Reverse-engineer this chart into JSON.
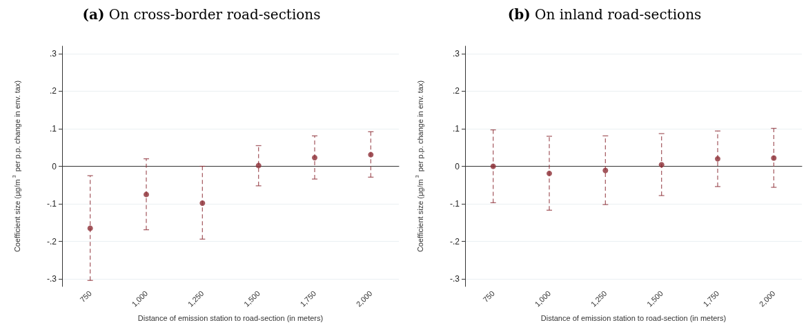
{
  "chart_data": [
    {
      "type": "scatter",
      "title": "(a) On cross-border road-sections",
      "xlabel": "Distance of emission station to road-section (in meters)",
      "ylabel": "Coefficient size (μg/m$^{3}$ per p.p. change in env. tax)",
      "categories": [
        "750",
        "1,000",
        "1,250",
        "1,500",
        "1,750",
        "2,000"
      ],
      "series": [
        {
          "color": "#8c2d35",
          "values": [
            -0.165,
            -0.075,
            -0.098,
            0.002,
            0.023,
            0.031
          ],
          "errors": [
            [
              -0.304,
              -0.025
            ],
            [
              -0.169,
              0.02
            ],
            [
              -0.194,
              0.0
            ],
            [
              -0.052,
              0.055
            ],
            [
              -0.034,
              0.081
            ],
            [
              -0.029,
              0.092
            ]
          ]
        }
      ],
      "ylim": [
        -0.32,
        0.32
      ],
      "yticks": [
        {
          "value": -0.3,
          "label": "-.3"
        },
        {
          "value": -0.2,
          "label": "-.2"
        },
        {
          "value": -0.1,
          "label": "-.1"
        },
        0,
        {
          "value": 0.1,
          "label": ".1"
        },
        {
          "value": 0.2,
          "label": ".2"
        },
        {
          "value": 0.3,
          "label": ".3"
        }
      ],
      "ref_lines": [
        {
          "axis": "y",
          "value": 0,
          "color": "#333333"
        }
      ],
      "grid": "y",
      "marker": "circle"
    },
    {
      "type": "scatter",
      "title": "(b) On inland road-sections",
      "xlabel": "Distance of emission station to road-section (in meters)",
      "ylabel": "Coefficient size (μg/m$^{3}$ per p.p. change in env. tax)",
      "categories": [
        "750",
        "1,000",
        "1,250",
        "1,500",
        "1,750",
        "2,000"
      ],
      "series": [
        {
          "color": "#8c2d35",
          "values": [
            0.0,
            -0.019,
            -0.011,
            0.004,
            0.02,
            0.022
          ],
          "errors": [
            [
              -0.097,
              0.097
            ],
            [
              -0.117,
              0.08
            ],
            [
              -0.102,
              0.081
            ],
            [
              -0.078,
              0.087
            ],
            [
              -0.054,
              0.094
            ],
            [
              -0.056,
              0.101
            ]
          ]
        }
      ],
      "ylim": [
        -0.32,
        0.32
      ],
      "yticks": [
        {
          "value": -0.3,
          "label": "-.3"
        },
        {
          "value": -0.2,
          "label": "-.2"
        },
        {
          "value": -0.1,
          "label": "-.1"
        },
        0,
        {
          "value": 0.1,
          "label": ".1"
        },
        {
          "value": 0.2,
          "label": ".2"
        },
        {
          "value": 0.3,
          "label": ".3"
        }
      ],
      "ref_lines": [
        {
          "axis": "y",
          "value": 0,
          "color": "#333333"
        }
      ],
      "grid": "y",
      "marker": "circle"
    }
  ]
}
